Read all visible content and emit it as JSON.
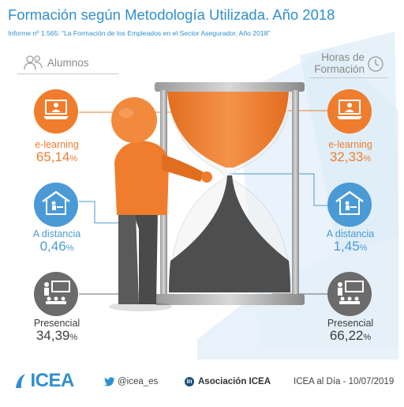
{
  "title": "Formación según Metodología Utilizada. Año 2018",
  "subtitle": "Informe nº 1.565: “La Formación de los Empleados en el Sector Asegurador. Año 2018”",
  "left_header": "Alumnos",
  "right_header_line1": "Horas de",
  "right_header_line2": "Formación",
  "left": {
    "elearning": {
      "name": "e-learning",
      "value": "65,14",
      "unit": "%"
    },
    "distancia": {
      "name": "A distancia",
      "value": "0,46",
      "unit": "%"
    },
    "presencial": {
      "name": "Presencial",
      "value": "34,39",
      "unit": "%"
    }
  },
  "right": {
    "elearning": {
      "name": "e-learning",
      "value": "32,33",
      "unit": "%"
    },
    "distancia": {
      "name": "A distancia",
      "value": "1,45",
      "unit": "%"
    },
    "presencial": {
      "name": "Presencial",
      "value": "66,22",
      "unit": "%"
    }
  },
  "footer": {
    "logo_text": "ICEA",
    "twitter": "@icea_es",
    "linkedin": "Asociación ICEA",
    "date": "ICEA al Día - 10/07/2019"
  },
  "colors": {
    "orange": "#ef7d2d",
    "blue": "#4a9ad6",
    "gray": "#6b6b6b",
    "title": "#2f8fd0"
  },
  "icons": [
    "people-icon",
    "clock-icon",
    "laptop-teacher-icon",
    "home-study-icon",
    "classroom-icon",
    "hourglass",
    "orange-figure",
    "twitter-icon",
    "linkedin-icon"
  ]
}
